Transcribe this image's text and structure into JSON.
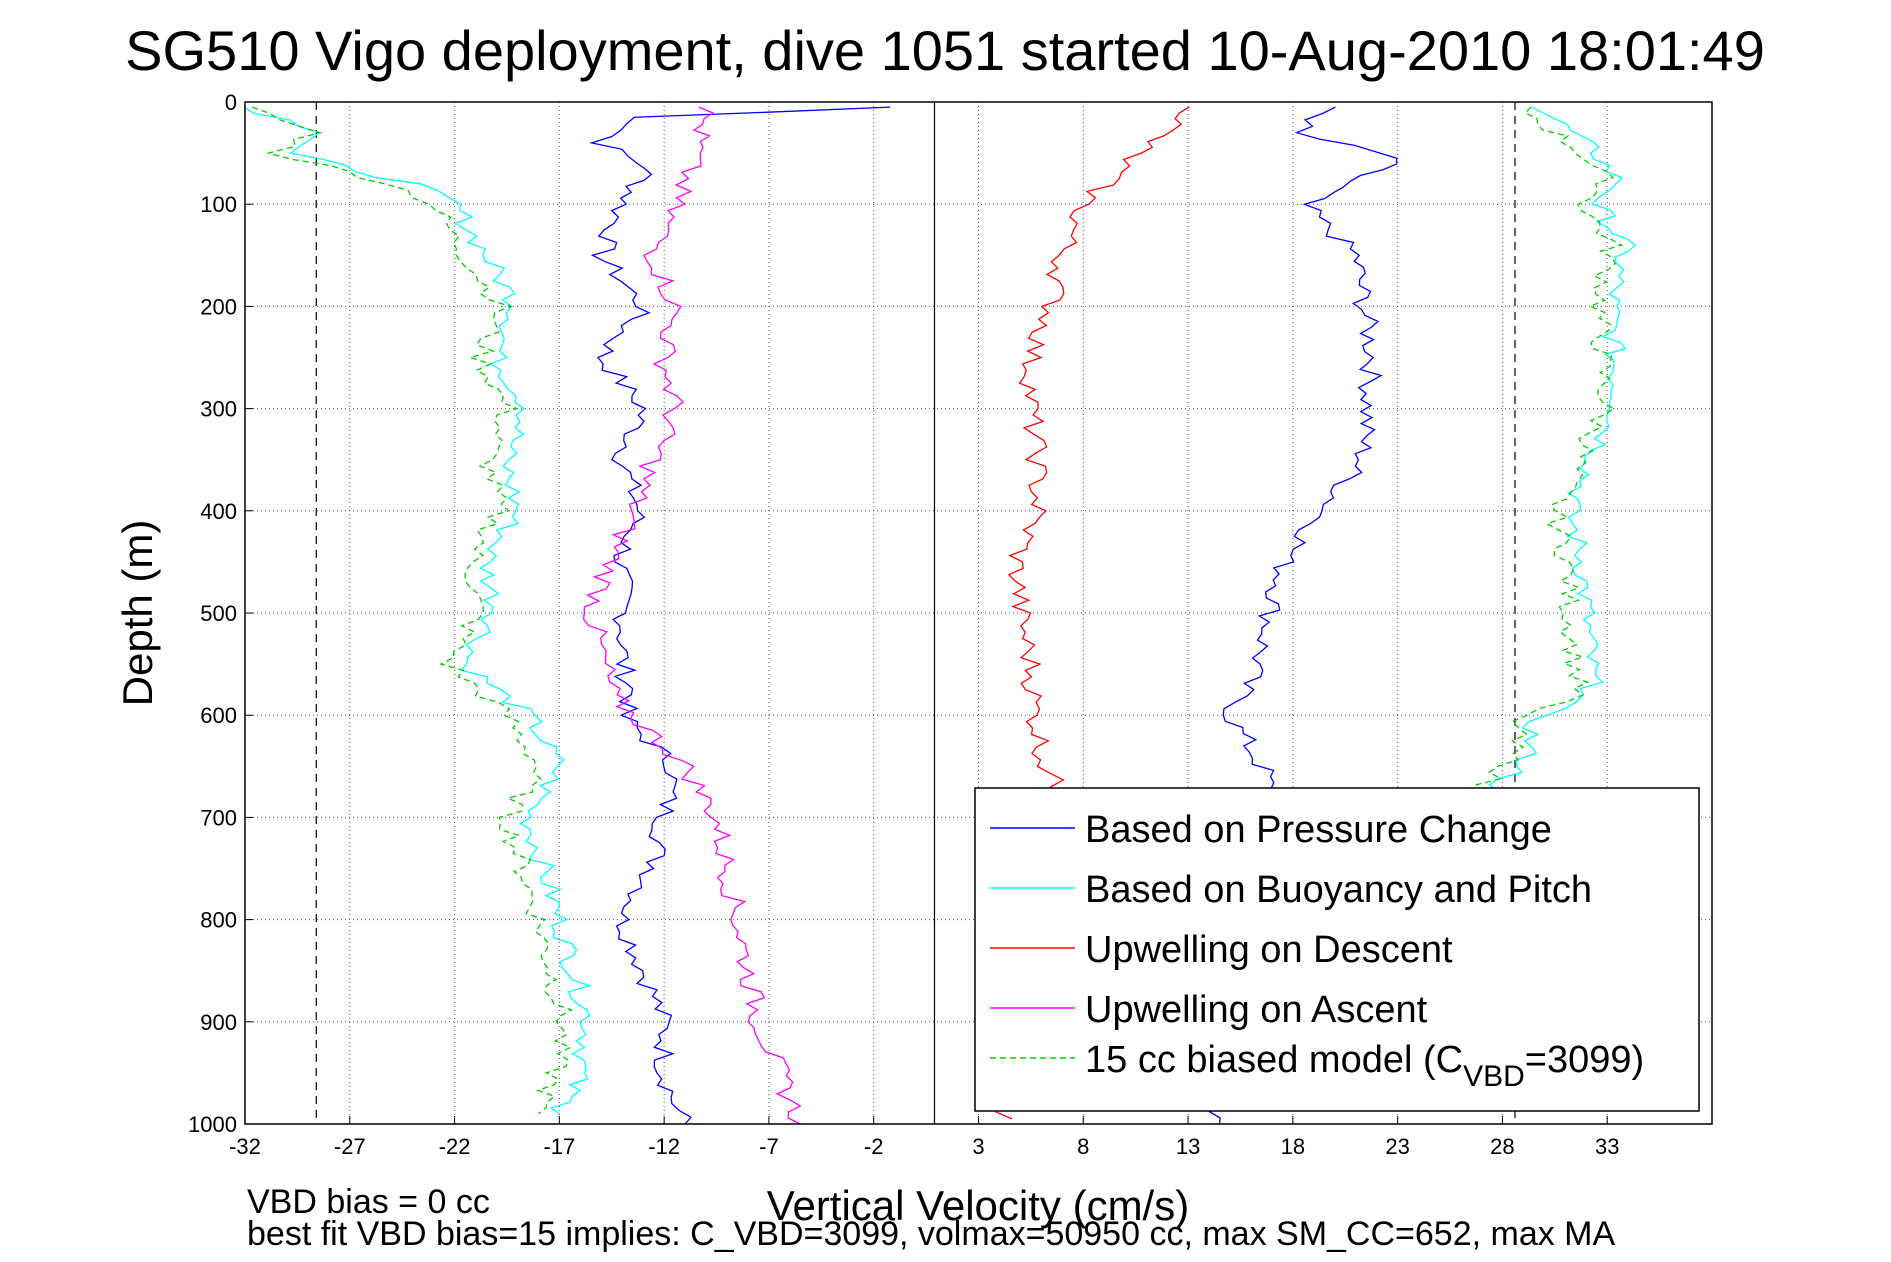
{
  "chart_data": {
    "type": "line",
    "title": "SG510 Vigo deployment, dive 1051 started 10-Aug-2010 18:01:49",
    "xlabel": "Vertical Velocity (cm/s)",
    "ylabel": "Depth (m)",
    "xlim": [
      -32,
      38
    ],
    "ylim": [
      1000,
      0
    ],
    "y_reversed": true,
    "grid": true,
    "xticks": [
      "-32",
      "-27",
      "-22",
      "-17",
      "-12",
      "-7",
      "-2",
      "3",
      "8",
      "13",
      "18",
      "23",
      "28",
      "33"
    ],
    "yticks": [
      "0",
      "100",
      "200",
      "300",
      "400",
      "500",
      "600",
      "700",
      "800",
      "900",
      "1000"
    ],
    "vertical_lines": [
      {
        "x": -28.6,
        "style": "dashed"
      },
      {
        "x": 0.9,
        "style": "solid"
      },
      {
        "x": 28.6,
        "style": "dashed"
      }
    ],
    "legend_position": "bottom-right",
    "legend": [
      {
        "label": "Based on Pressure Change",
        "color": "#0000ff",
        "dash": false
      },
      {
        "label": "Based on Buoyancy and Pitch",
        "color": "#00ffff",
        "dash": false
      },
      {
        "label": "Upwelling on Descent",
        "color": "#ff0000",
        "dash": false
      },
      {
        "label": "Upwelling on Ascent",
        "color": "#ff00ff",
        "dash": false
      },
      {
        "label_main": "15 cc biased model (C",
        "label_sub": "VBD",
        "label_tail": "=3099)",
        "color": "#00cc00",
        "dash": true
      }
    ],
    "series": [
      {
        "color": "#0000ff",
        "dash": false,
        "x": [
          -1.2,
          -13,
          -15,
          -12.7,
          -14,
          -15,
          -13,
          -15,
          -13,
          -14,
          -13.2,
          -14.1,
          -13.9,
          -14,
          -13.5,
          -14,
          -11.5,
          -12,
          -12.5,
          -14,
          -13,
          -12,
          -12,
          -11.5,
          -11
        ],
        "y": [
          5,
          15,
          40,
          65,
          100,
          150,
          200,
          250,
          300,
          350,
          400,
          450,
          500,
          550,
          580,
          600,
          650,
          700,
          750,
          800,
          850,
          900,
          950,
          980,
          1000
        ]
      },
      {
        "color": "#0000ff",
        "dash": false,
        "x": [
          20,
          18,
          23,
          18.5,
          21,
          21.8,
          21.3,
          19.5,
          17.6,
          16.3,
          15,
          16.8,
          16.6,
          14.5
        ],
        "y": [
          5,
          30,
          55,
          100,
          150,
          250,
          350,
          400,
          450,
          550,
          600,
          660,
          700,
          1000
        ]
      },
      {
        "color": "#00ffff",
        "dash": false,
        "x": [
          -32,
          -28,
          -30,
          -24,
          -22,
          -20.5,
          -19,
          -20,
          -18.5,
          -19.6,
          -19,
          -20.5,
          -20,
          -21.5,
          -18.5,
          -17,
          -18.5,
          -17,
          -15.6,
          -16,
          -17
        ],
        "y": [
          5,
          30,
          50,
          80,
          100,
          150,
          200,
          250,
          300,
          350,
          400,
          450,
          500,
          550,
          600,
          650,
          700,
          800,
          900,
          950,
          990
        ]
      },
      {
        "color": "#00ffff",
        "dash": false,
        "x": [
          29.8,
          32.5,
          33.6,
          32.5,
          33.8,
          33.2,
          33.5,
          31.2,
          31.8,
          32,
          32.3,
          29.6,
          29,
          27
        ],
        "y": [
          5,
          50,
          80,
          100,
          140,
          200,
          300,
          400,
          450,
          500,
          580,
          600,
          650,
          680
        ]
      },
      {
        "color": "#00cc00",
        "dash": true,
        "x": [
          -32,
          -28.6,
          -30.5,
          -25,
          -23,
          -21.5,
          -19.8,
          -20.8,
          -19.5,
          -20.4,
          -19.9,
          -21.2,
          -20.9,
          -22.3,
          -19.5,
          -18,
          -19.5,
          -18,
          -16.8,
          -17.2,
          -18
        ],
        "y": [
          5,
          30,
          50,
          80,
          100,
          150,
          200,
          250,
          300,
          350,
          400,
          450,
          500,
          550,
          600,
          650,
          700,
          800,
          900,
          950,
          990
        ]
      },
      {
        "color": "#00cc00",
        "dash": true,
        "x": [
          28.9,
          31.8,
          33,
          31.9,
          33.2,
          32.6,
          32.9,
          30.5,
          31.1,
          31.2,
          31.6,
          28.8,
          28.3,
          26.2
        ],
        "y": [
          5,
          50,
          80,
          100,
          140,
          200,
          300,
          400,
          450,
          500,
          580,
          600,
          650,
          680
        ]
      },
      {
        "color": "#ff0000",
        "dash": false,
        "x": [
          13.5,
          10.5,
          8,
          7,
          6.5,
          5.5,
          5.5,
          5.8,
          5.8,
          4.8,
          5,
          5.5,
          5.7,
          6.2,
          6.7,
          6.5,
          6.2
        ],
        "y": [
          5,
          50,
          100,
          150,
          200,
          250,
          300,
          350,
          400,
          450,
          500,
          550,
          600,
          650,
          670,
          680,
          690
        ]
      },
      {
        "color": "#ff0000",
        "dash": false,
        "x": [
          3.8,
          4.6
        ],
        "y": [
          975,
          995
        ]
      },
      {
        "color": "#ff00ff",
        "dash": false,
        "x": [
          -10,
          -10.5,
          -11.5,
          -12.5,
          -11.5,
          -12,
          -11.5,
          -12.5,
          -13.5,
          -15.5,
          -14.5,
          -11,
          -9.5,
          -8.5,
          -7.5,
          -5.5
        ],
        "y": [
          5,
          50,
          100,
          150,
          200,
          250,
          300,
          350,
          400,
          500,
          580,
          650,
          700,
          800,
          900,
          1000
        ]
      }
    ]
  },
  "footer": {
    "vbd_bias": "VBD bias = 0 cc",
    "best_fit": "best fit VBD bias=15 implies: C_VBD=3099, volmax=50950 cc, max SM_CC=652, max MA"
  }
}
